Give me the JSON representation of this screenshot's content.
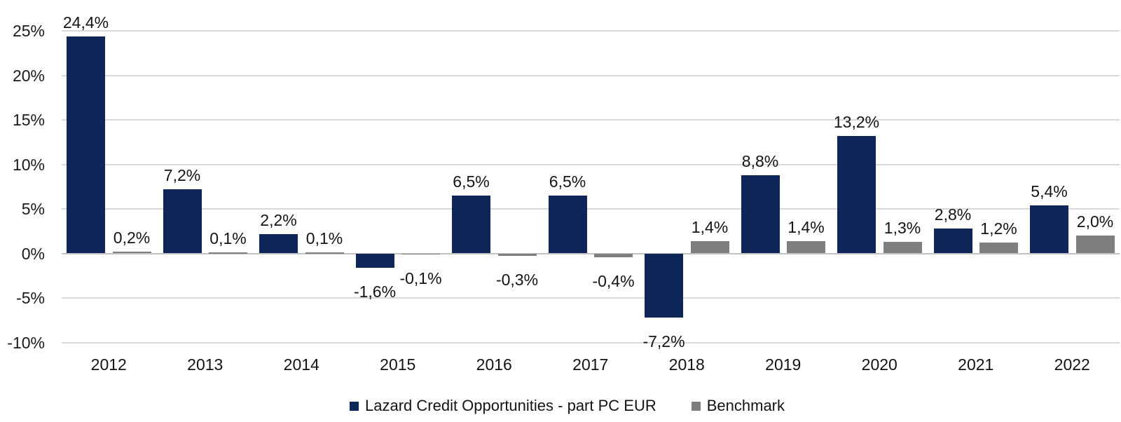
{
  "chart_data": {
    "type": "bar",
    "categories": [
      "2012",
      "2013",
      "2014",
      "2015",
      "2016",
      "2017",
      "2018",
      "2019",
      "2020",
      "2021",
      "2022"
    ],
    "series": [
      {
        "name": "Lazard Credit Opportunities - part PC EUR",
        "color": "#0d2557",
        "values": [
          24.4,
          7.2,
          2.2,
          -1.6,
          6.5,
          6.5,
          -7.2,
          8.8,
          13.2,
          2.8,
          5.4
        ],
        "labels": [
          "24,4%",
          "7,2%",
          "2,2%",
          "-1,6%",
          "6,5%",
          "6,5%",
          "-7,2%",
          "8,8%",
          "13,2%",
          "2,8%",
          "5,4%"
        ]
      },
      {
        "name": "Benchmark",
        "color": "#7f7f7f",
        "values": [
          0.2,
          0.1,
          0.1,
          -0.1,
          -0.3,
          -0.4,
          1.4,
          1.4,
          1.3,
          1.2,
          2.0
        ],
        "labels": [
          "0,2%",
          "0,1%",
          "0,1%",
          "-0,1%",
          "-0,3%",
          "-0,4%",
          "1,4%",
          "1,4%",
          "1,3%",
          "1,2%",
          "2,0%"
        ]
      }
    ],
    "y_axis": {
      "min": -10,
      "max": 25,
      "step": 5,
      "tick_labels": [
        "25%",
        "20%",
        "15%",
        "10%",
        "5%",
        "0%",
        "-5%",
        "-10%"
      ]
    },
    "grid": true,
    "legend_position": "bottom",
    "colors": {
      "gridline": "#d9d9d9",
      "zero_line": "#c2c2c2",
      "label_text": "#141414"
    }
  }
}
